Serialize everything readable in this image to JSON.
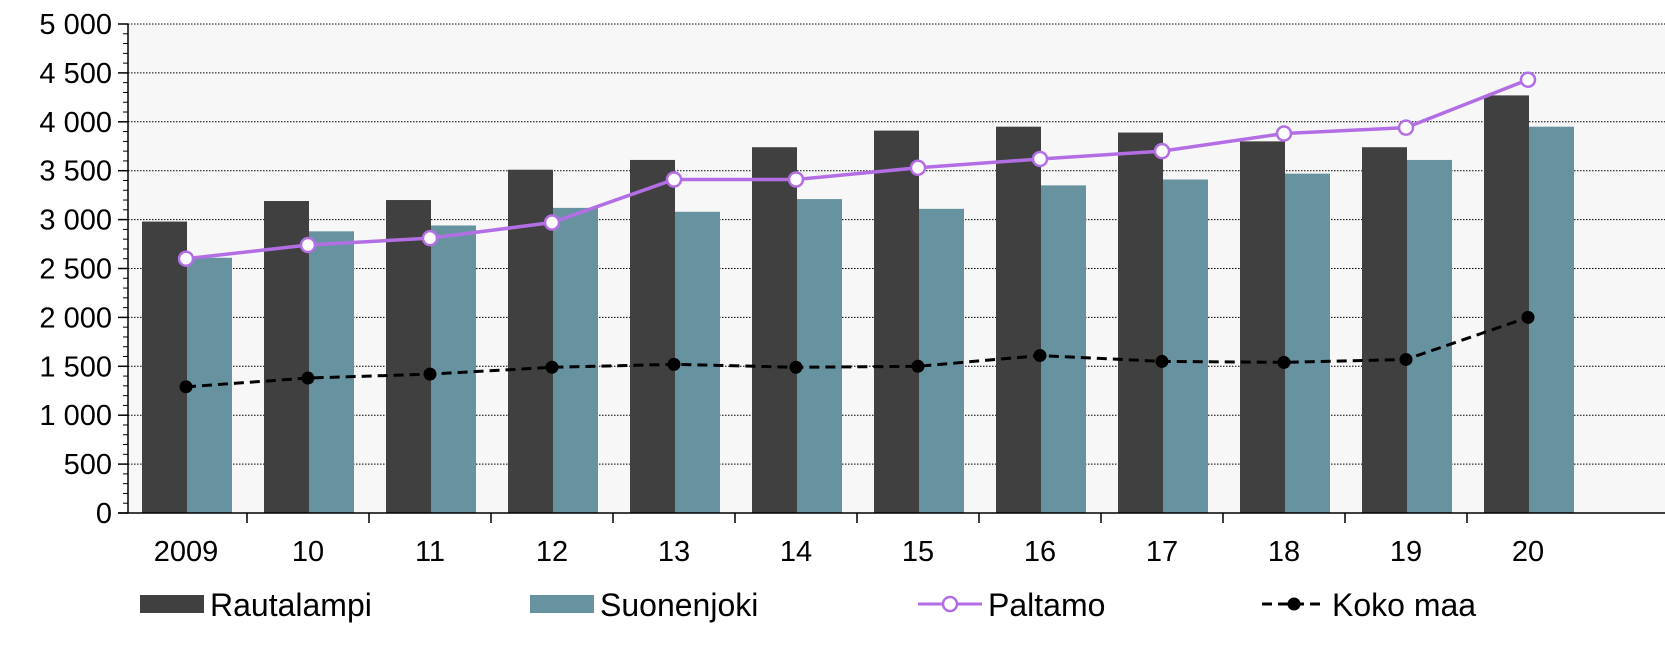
{
  "chart_data": {
    "type": "bar",
    "categories": [
      "2009",
      "10",
      "11",
      "12",
      "13",
      "14",
      "15",
      "16",
      "17",
      "18",
      "19",
      "20"
    ],
    "ylim": [
      0,
      5000
    ],
    "ytick_labels": [
      "0",
      "500",
      "1 000",
      "1 500",
      "2 000",
      "2 500",
      "3 000",
      "3 500",
      "4 000",
      "4 500",
      "5 000"
    ],
    "grid": true,
    "legend_position": "bottom",
    "series": [
      {
        "name": "Rautalampi",
        "type": "bar",
        "color": "#404040",
        "values": [
          2980,
          3190,
          3200,
          3510,
          3610,
          3740,
          3910,
          3950,
          3890,
          3800,
          3740,
          4270
        ]
      },
      {
        "name": "Suonenjoki",
        "type": "bar",
        "color": "#6793a0",
        "values": [
          2610,
          2880,
          2940,
          3120,
          3080,
          3210,
          3110,
          3350,
          3410,
          3470,
          3610,
          3950
        ]
      },
      {
        "name": "Paltamo",
        "type": "line",
        "color": "#b36ee6",
        "marker": "open-circle",
        "dashed": false,
        "values": [
          2600,
          2740,
          2810,
          2970,
          3410,
          3410,
          3530,
          3620,
          3700,
          3880,
          3940,
          4430
        ]
      },
      {
        "name": "Koko maa",
        "type": "line",
        "color": "#000000",
        "marker": "filled-circle",
        "dashed": true,
        "values": [
          1290,
          1380,
          1420,
          1490,
          1520,
          1490,
          1500,
          1610,
          1550,
          1540,
          1570,
          2000
        ]
      }
    ]
  }
}
